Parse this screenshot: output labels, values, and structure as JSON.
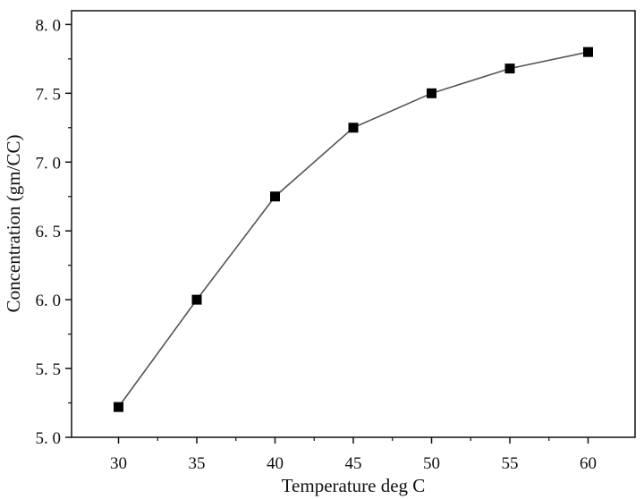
{
  "chart_data": {
    "type": "line",
    "title": "",
    "xlabel": "Temperature deg C",
    "ylabel": "Concentration (gm/CC)",
    "xlim": [
      27,
      63
    ],
    "ylim": [
      5.0,
      8.1
    ],
    "x_ticks": [
      30,
      35,
      40,
      45,
      50,
      55,
      60
    ],
    "x_tick_labels": [
      "30",
      "35",
      "40",
      "45",
      "50",
      "55",
      "60"
    ],
    "y_ticks": [
      5.0,
      5.5,
      6.0,
      6.5,
      7.0,
      7.5,
      8.0
    ],
    "y_tick_labels": [
      "5. 0",
      "5. 5",
      "6. 0",
      "6. 5",
      "7. 0",
      "7. 5",
      "8. 0"
    ],
    "grid": false,
    "legend": "none",
    "series": [
      {
        "x": [
          30,
          35,
          40,
          45,
          50,
          55,
          60
        ],
        "values": [
          5.22,
          6.0,
          6.75,
          7.25,
          7.5,
          7.68,
          7.8
        ],
        "line_color": "#555555",
        "marker": "square",
        "marker_color": "#000000"
      }
    ]
  }
}
